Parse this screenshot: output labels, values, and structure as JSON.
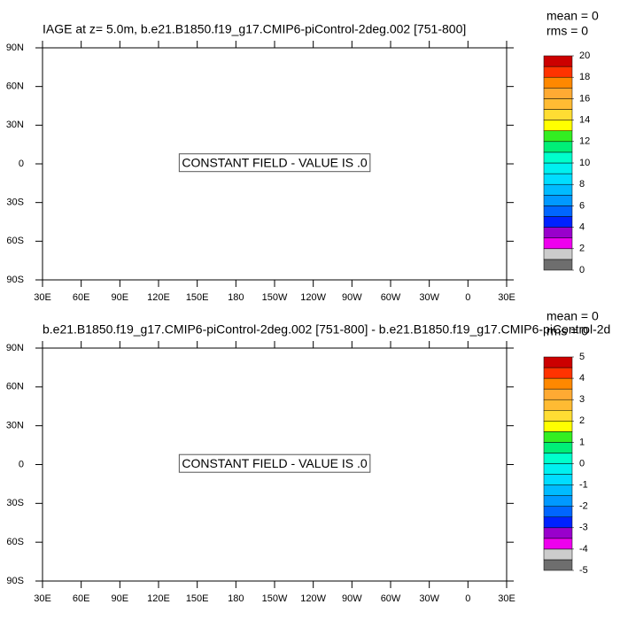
{
  "chart_data": [
    {
      "type": "map",
      "title": "IAGE at z=   5.0m, b.e21.B1850.f19_g17.CMIP6-piControl-2deg.002 [751-800]",
      "stats": [
        "mean = 0",
        "rms = 0"
      ],
      "annotation": "CONSTANT FIELD - VALUE IS .0",
      "xlim": [
        30,
        390
      ],
      "xticks": [
        {
          "value": 30,
          "label": "30E"
        },
        {
          "value": 60,
          "label": "60E"
        },
        {
          "value": 90,
          "label": "90E"
        },
        {
          "value": 120,
          "label": "120E"
        },
        {
          "value": 150,
          "label": "150E"
        },
        180,
        {
          "value": 210,
          "label": "150W"
        },
        {
          "value": 240,
          "label": "120W"
        },
        {
          "value": 270,
          "label": "90W"
        },
        {
          "value": 300,
          "label": "60W"
        },
        {
          "value": 330,
          "label": "30W"
        },
        {
          "value": 360,
          "label": "0"
        },
        {
          "value": 390,
          "label": "30E"
        }
      ],
      "ylim": [
        -90,
        90
      ],
      "yticks": [
        {
          "value": -90,
          "label": "90S"
        },
        {
          "value": -60,
          "label": "60S"
        },
        {
          "value": -30,
          "label": "30S"
        },
        0,
        {
          "value": 30,
          "label": "30N"
        },
        {
          "value": 60,
          "label": "60N"
        },
        {
          "value": 90,
          "label": "90N"
        }
      ],
      "colorbar": {
        "lim": [
          0,
          20
        ],
        "ticks": [
          0,
          2,
          4,
          6,
          8,
          10,
          12,
          14,
          16,
          18,
          20
        ],
        "colors": [
          "#6e6e6e",
          "#cccccc",
          "#ee00ee",
          "#9900cc",
          "#0022ff",
          "#0066ff",
          "#0099ff",
          "#00bbff",
          "#00ddff",
          "#00f0f0",
          "#00ffcc",
          "#00ee77",
          "#33ee22",
          "#ffff00",
          "#ffdd33",
          "#ffbb33",
          "#ffaa33",
          "#ff8800",
          "#ff3300",
          "#cc0000"
        ]
      }
    },
    {
      "type": "map",
      "title": "b.e21.B1850.f19_g17.CMIP6-piControl-2deg.002 [751-800] - b.e21.B1850.f19_g17.CMIP6-piControl-2d",
      "stats": [
        "mean = 0",
        "rms = 0"
      ],
      "annotation": "CONSTANT FIELD - VALUE IS .0",
      "xlim": [
        30,
        390
      ],
      "xticks": [
        {
          "value": 30,
          "label": "30E"
        },
        {
          "value": 60,
          "label": "60E"
        },
        {
          "value": 90,
          "label": "90E"
        },
        {
          "value": 120,
          "label": "120E"
        },
        {
          "value": 150,
          "label": "150E"
        },
        180,
        {
          "value": 210,
          "label": "150W"
        },
        {
          "value": 240,
          "label": "120W"
        },
        {
          "value": 270,
          "label": "90W"
        },
        {
          "value": 300,
          "label": "60W"
        },
        {
          "value": 330,
          "label": "30W"
        },
        {
          "value": 360,
          "label": "0"
        },
        {
          "value": 390,
          "label": "30E"
        }
      ],
      "ylim": [
        -90,
        90
      ],
      "yticks": [
        {
          "value": -90,
          "label": "90S"
        },
        {
          "value": -60,
          "label": "60S"
        },
        {
          "value": -30,
          "label": "30S"
        },
        0,
        {
          "value": 30,
          "label": "30N"
        },
        {
          "value": 60,
          "label": "60N"
        },
        {
          "value": 90,
          "label": "90N"
        }
      ],
      "colorbar": {
        "lim": [
          -5,
          5
        ],
        "ticks": [
          -5,
          -4,
          -3,
          -2,
          -1,
          0,
          1,
          2,
          3,
          4,
          5
        ],
        "colors": [
          "#6e6e6e",
          "#cccccc",
          "#ee00ee",
          "#9900cc",
          "#0022ff",
          "#0066ff",
          "#0099ff",
          "#00bbff",
          "#00ddff",
          "#00f0f0",
          "#00ffcc",
          "#00ee77",
          "#33ee22",
          "#ffff00",
          "#ffdd33",
          "#ffbb33",
          "#ffaa33",
          "#ff8800",
          "#ff3300",
          "#cc0000"
        ]
      }
    }
  ]
}
